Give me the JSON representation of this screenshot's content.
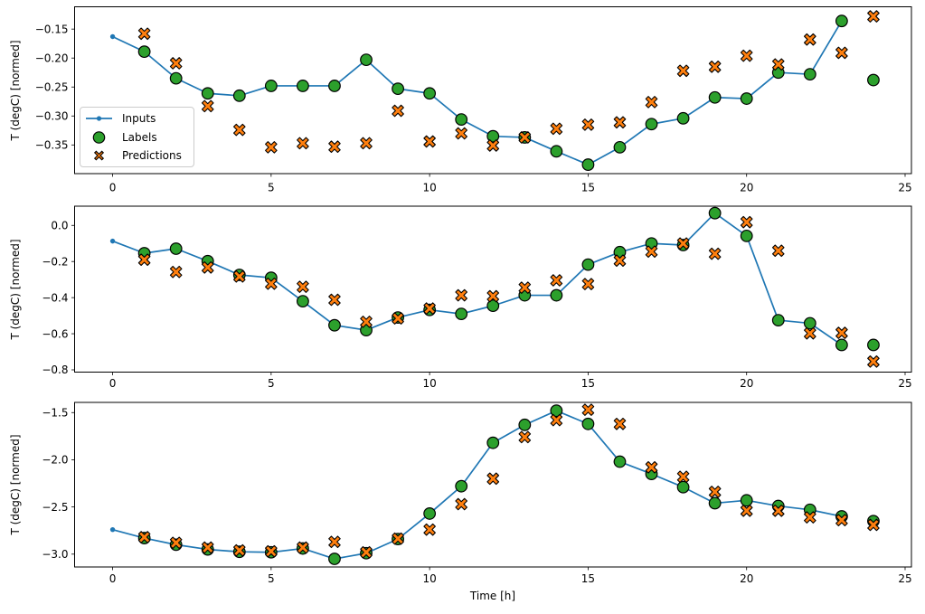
{
  "figure": {
    "xlabel": "Time [h]",
    "ylabel": "T (degC) [normed]"
  },
  "colors": {
    "inputs": "#1f77b4",
    "labels": "#2ca02c",
    "predictions": "#ff7f0e",
    "marker_edge": "#000000",
    "axis": "#000000",
    "legend_border": "#cccccc"
  },
  "legend": {
    "items": [
      {
        "label": "Inputs",
        "marker": "line-dot"
      },
      {
        "label": "Labels",
        "marker": "circle"
      },
      {
        "label": "Predictions",
        "marker": "x"
      }
    ]
  },
  "chart_data": [
    {
      "type": "line",
      "title": "",
      "xlabel": "",
      "ylabel": "T (degC) [normed]",
      "xlim": [
        -1.2,
        25.2
      ],
      "ylim": [
        -0.3995,
        -0.1115
      ],
      "x_ticks": [
        0,
        5,
        10,
        15,
        20,
        25
      ],
      "x_tick_labels": [
        "0",
        "5",
        "10",
        "15",
        "20",
        "25"
      ],
      "y_ticks": [
        -0.15,
        -0.2,
        -0.25,
        -0.3,
        -0.35
      ],
      "y_tick_labels": [
        "−0.15",
        "−0.20",
        "−0.25",
        "−0.30",
        "−0.35"
      ],
      "grid": false,
      "legend": true,
      "legend_position": "center left",
      "series": [
        {
          "name": "Inputs",
          "style": "line-dot",
          "x": [
            0,
            1,
            2,
            3,
            4,
            5,
            6,
            7,
            8,
            9,
            10,
            11,
            12,
            13,
            14,
            15,
            16,
            17,
            18,
            19,
            20,
            21,
            22,
            23
          ],
          "y": [
            -0.163,
            -0.189,
            -0.235,
            -0.261,
            -0.265,
            -0.248,
            -0.248,
            -0.248,
            -0.203,
            -0.253,
            -0.261,
            -0.306,
            -0.335,
            -0.337,
            -0.361,
            -0.384,
            -0.354,
            -0.314,
            -0.304,
            -0.268,
            -0.27,
            -0.225,
            -0.228,
            -0.136
          ]
        },
        {
          "name": "Labels",
          "style": "circle",
          "x": [
            1,
            2,
            3,
            4,
            5,
            6,
            7,
            8,
            9,
            10,
            11,
            12,
            13,
            14,
            15,
            16,
            17,
            18,
            19,
            20,
            21,
            22,
            23,
            24
          ],
          "y": [
            -0.189,
            -0.235,
            -0.261,
            -0.265,
            -0.248,
            -0.248,
            -0.248,
            -0.203,
            -0.253,
            -0.261,
            -0.306,
            -0.335,
            -0.337,
            -0.361,
            -0.384,
            -0.354,
            -0.314,
            -0.304,
            -0.268,
            -0.27,
            -0.225,
            -0.228,
            -0.136,
            -0.238
          ]
        },
        {
          "name": "Predictions",
          "style": "x",
          "x": [
            1,
            2,
            3,
            4,
            5,
            6,
            7,
            8,
            9,
            10,
            11,
            12,
            13,
            14,
            15,
            16,
            17,
            18,
            19,
            20,
            21,
            22,
            23,
            24
          ],
          "y": [
            -0.158,
            -0.209,
            -0.283,
            -0.324,
            -0.354,
            -0.347,
            -0.353,
            -0.347,
            -0.291,
            -0.344,
            -0.33,
            -0.351,
            -0.337,
            -0.322,
            -0.315,
            -0.311,
            -0.276,
            -0.222,
            -0.215,
            -0.196,
            -0.211,
            -0.168,
            -0.191,
            -0.128
          ]
        }
      ]
    },
    {
      "type": "line",
      "title": "",
      "xlabel": "",
      "ylabel": "T (degC) [normed]",
      "xlim": [
        -1.2,
        25.2
      ],
      "ylim": [
        -0.8125,
        0.1065
      ],
      "x_ticks": [
        0,
        5,
        10,
        15,
        20,
        25
      ],
      "x_tick_labels": [
        "0",
        "5",
        "10",
        "15",
        "20",
        "25"
      ],
      "y_ticks": [
        0.0,
        -0.2,
        -0.4,
        -0.6,
        -0.8
      ],
      "y_tick_labels": [
        "0.0",
        "−0.2",
        "−0.4",
        "−0.6",
        "−0.8"
      ],
      "grid": false,
      "legend": false,
      "series": [
        {
          "name": "Inputs",
          "style": "line-dot",
          "x": [
            0,
            1,
            2,
            3,
            4,
            5,
            6,
            7,
            8,
            9,
            10,
            11,
            12,
            13,
            14,
            15,
            16,
            17,
            18,
            19,
            20,
            21,
            22,
            23
          ],
          "y": [
            -0.087,
            -0.154,
            -0.129,
            -0.198,
            -0.274,
            -0.29,
            -0.42,
            -0.553,
            -0.58,
            -0.51,
            -0.468,
            -0.49,
            -0.445,
            -0.387,
            -0.387,
            -0.217,
            -0.148,
            -0.1,
            -0.109,
            0.068,
            -0.058,
            -0.525,
            -0.542,
            -0.662
          ]
        },
        {
          "name": "Labels",
          "style": "circle",
          "x": [
            1,
            2,
            3,
            4,
            5,
            6,
            7,
            8,
            9,
            10,
            11,
            12,
            13,
            14,
            15,
            16,
            17,
            18,
            19,
            20,
            21,
            22,
            23,
            24
          ],
          "y": [
            -0.154,
            -0.129,
            -0.198,
            -0.274,
            -0.29,
            -0.42,
            -0.553,
            -0.58,
            -0.51,
            -0.468,
            -0.49,
            -0.445,
            -0.387,
            -0.387,
            -0.217,
            -0.148,
            -0.1,
            -0.109,
            0.068,
            -0.058,
            -0.525,
            -0.542,
            -0.662,
            -0.662
          ]
        },
        {
          "name": "Predictions",
          "style": "x",
          "x": [
            1,
            2,
            3,
            4,
            5,
            6,
            7,
            8,
            9,
            10,
            11,
            12,
            13,
            14,
            15,
            16,
            17,
            18,
            19,
            20,
            21,
            22,
            23,
            24
          ],
          "y": [
            -0.19,
            -0.258,
            -0.233,
            -0.283,
            -0.323,
            -0.34,
            -0.412,
            -0.534,
            -0.515,
            -0.46,
            -0.387,
            -0.392,
            -0.345,
            -0.304,
            -0.325,
            -0.195,
            -0.145,
            -0.1,
            -0.157,
            0.018,
            -0.14,
            -0.598,
            -0.595,
            -0.754
          ]
        }
      ]
    },
    {
      "type": "line",
      "title": "",
      "xlabel": "Time [h]",
      "ylabel": "T (degC) [normed]",
      "xlim": [
        -1.2,
        25.2
      ],
      "ylim": [
        -3.136,
        -1.392
      ],
      "x_ticks": [
        0,
        5,
        10,
        15,
        20,
        25
      ],
      "x_tick_labels": [
        "0",
        "5",
        "10",
        "15",
        "20",
        "25"
      ],
      "y_ticks": [
        -1.5,
        -2.0,
        -2.5,
        -3.0
      ],
      "y_tick_labels": [
        "−1.5",
        "−2.0",
        "−2.5",
        "−3.0"
      ],
      "grid": false,
      "legend": false,
      "series": [
        {
          "name": "Inputs",
          "style": "line-dot",
          "x": [
            0,
            1,
            2,
            3,
            4,
            5,
            6,
            7,
            8,
            9,
            10,
            11,
            12,
            13,
            14,
            15,
            16,
            17,
            18,
            19,
            20,
            21,
            22,
            23
          ],
          "y": [
            -2.74,
            -2.83,
            -2.9,
            -2.95,
            -2.975,
            -2.98,
            -2.94,
            -3.05,
            -2.99,
            -2.84,
            -2.57,
            -2.28,
            -1.82,
            -1.63,
            -1.48,
            -1.62,
            -2.02,
            -2.15,
            -2.29,
            -2.46,
            -2.43,
            -2.49,
            -2.53,
            -2.6
          ]
        },
        {
          "name": "Labels",
          "style": "circle",
          "x": [
            1,
            2,
            3,
            4,
            5,
            6,
            7,
            8,
            9,
            10,
            11,
            12,
            13,
            14,
            15,
            16,
            17,
            18,
            19,
            20,
            21,
            22,
            23,
            24
          ],
          "y": [
            -2.83,
            -2.9,
            -2.95,
            -2.975,
            -2.98,
            -2.94,
            -3.05,
            -2.99,
            -2.84,
            -2.57,
            -2.28,
            -1.82,
            -1.63,
            -1.48,
            -1.62,
            -2.02,
            -2.15,
            -2.29,
            -2.46,
            -2.43,
            -2.49,
            -2.53,
            -2.6,
            -2.65
          ]
        },
        {
          "name": "Predictions",
          "style": "x",
          "x": [
            1,
            2,
            3,
            4,
            5,
            6,
            7,
            8,
            9,
            10,
            11,
            12,
            13,
            14,
            15,
            16,
            17,
            18,
            19,
            20,
            21,
            22,
            23,
            24
          ],
          "y": [
            -2.82,
            -2.88,
            -2.93,
            -2.96,
            -2.97,
            -2.93,
            -2.87,
            -2.98,
            -2.835,
            -2.74,
            -2.47,
            -2.2,
            -1.76,
            -1.58,
            -1.47,
            -1.62,
            -2.08,
            -2.18,
            -2.34,
            -2.54,
            -2.54,
            -2.61,
            -2.64,
            -2.69
          ]
        }
      ]
    }
  ]
}
